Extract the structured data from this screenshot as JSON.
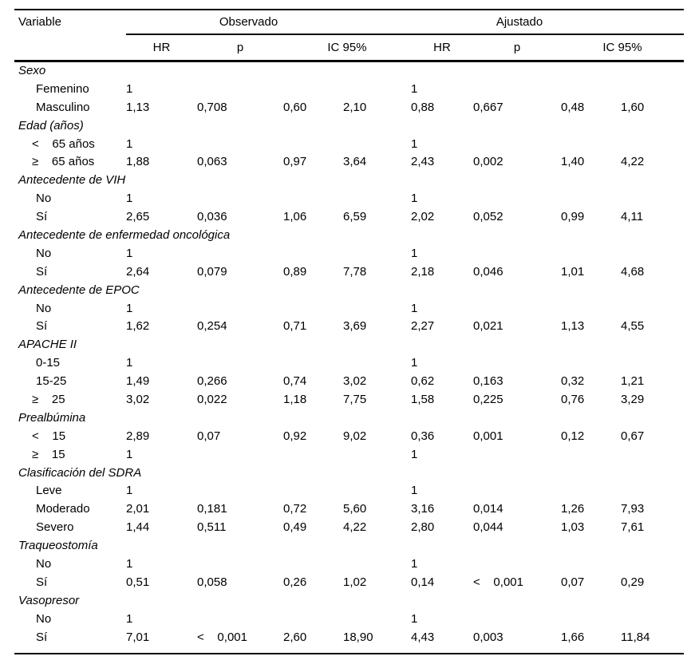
{
  "table": {
    "header": {
      "variable": "Variable",
      "groups": [
        "Observado",
        "Ajustado"
      ],
      "sub": [
        "HR",
        "p",
        "IC 95%",
        "HR",
        "p",
        "IC 95%"
      ]
    },
    "columns": [
      "obs-hr",
      "obs-p",
      "obs-ic-low",
      "obs-ic-high",
      "adj-hr",
      "adj-p",
      "adj-ic-low",
      "adj-ic-high"
    ],
    "rows": [
      {
        "type": "section",
        "label": "Sexo"
      },
      {
        "type": "data",
        "label": "Femenino",
        "cells": [
          "1",
          "",
          "",
          "",
          "1",
          "",
          "",
          ""
        ]
      },
      {
        "type": "data",
        "label": "Masculino",
        "cells": [
          "1,13",
          "0,708",
          "0,60",
          "2,10",
          "0,88",
          "0,667",
          "0,48",
          "1,60"
        ]
      },
      {
        "type": "section",
        "label": "Edad (años)"
      },
      {
        "type": "data",
        "label": "<    65 años",
        "cells": [
          "1",
          "",
          "",
          "",
          "1",
          "",
          "",
          ""
        ]
      },
      {
        "type": "data",
        "label": "≥    65 años",
        "cells": [
          "1,88",
          "0,063",
          "0,97",
          "3,64",
          "2,43",
          "0,002",
          "1,40",
          "4,22"
        ]
      },
      {
        "type": "section",
        "label": "Antecedente de VIH"
      },
      {
        "type": "data",
        "label": "No",
        "cells": [
          "1",
          "",
          "",
          "",
          "1",
          "",
          "",
          ""
        ]
      },
      {
        "type": "data",
        "label": "Sí",
        "cells": [
          "2,65",
          "0,036",
          "1,06",
          "6,59",
          "2,02",
          "0,052",
          "0,99",
          "4,11"
        ]
      },
      {
        "type": "section",
        "label": "Antecedente de enfermedad oncológica"
      },
      {
        "type": "data",
        "label": "No",
        "cells": [
          "1",
          "",
          "",
          "",
          "1",
          "",
          "",
          ""
        ]
      },
      {
        "type": "data",
        "label": "Sí",
        "cells": [
          "2,64",
          "0,079",
          "0,89",
          "7,78",
          "2,18",
          "0,046",
          "1,01",
          "4,68"
        ]
      },
      {
        "type": "section",
        "label": "Antecedente de EPOC"
      },
      {
        "type": "data",
        "label": "No",
        "cells": [
          "1",
          "",
          "",
          "",
          "1",
          "",
          "",
          ""
        ]
      },
      {
        "type": "data",
        "label": "Sí",
        "cells": [
          "1,62",
          "0,254",
          "0,71",
          "3,69",
          "2,27",
          "0,021",
          "1,13",
          "4,55"
        ]
      },
      {
        "type": "section",
        "label": "APACHE II"
      },
      {
        "type": "data",
        "label": "0-15",
        "cells": [
          "1",
          "",
          "",
          "",
          "1",
          "",
          "",
          ""
        ]
      },
      {
        "type": "data",
        "label": "15-25",
        "cells": [
          "1,49",
          "0,266",
          "0,74",
          "3,02",
          "0,62",
          "0,163",
          "0,32",
          "1,21"
        ]
      },
      {
        "type": "data",
        "label": "≥    25",
        "cells": [
          "3,02",
          "0,022",
          "1,18",
          "7,75",
          "1,58",
          "0,225",
          "0,76",
          "3,29"
        ]
      },
      {
        "type": "section",
        "label": "Prealbúmina"
      },
      {
        "type": "data",
        "label": "<    15",
        "cells": [
          "2,89",
          "0,07",
          "0,92",
          "9,02",
          "0,36",
          "0,001",
          "0,12",
          "0,67"
        ]
      },
      {
        "type": "data",
        "label": "≥    15",
        "cells": [
          "1",
          "",
          "",
          "",
          "1",
          "",
          "",
          ""
        ]
      },
      {
        "type": "section",
        "label": "Clasificación del SDRA"
      },
      {
        "type": "data",
        "label": "Leve",
        "cells": [
          "1",
          "",
          "",
          "",
          "1",
          "",
          "",
          ""
        ]
      },
      {
        "type": "data",
        "label": "Moderado",
        "cells": [
          "2,01",
          "0,181",
          "0,72",
          "5,60",
          "3,16",
          "0,014",
          "1,26",
          "7,93"
        ]
      },
      {
        "type": "data",
        "label": "Severo",
        "cells": [
          "1,44",
          "0,511",
          "0,49",
          "4,22",
          "2,80",
          "0,044",
          "1,03",
          "7,61"
        ]
      },
      {
        "type": "section",
        "label": "Traqueostomía"
      },
      {
        "type": "data",
        "label": "No",
        "cells": [
          "1",
          "",
          "",
          "",
          "1",
          "",
          "",
          ""
        ]
      },
      {
        "type": "data",
        "label": "Sí",
        "cells": [
          "0,51",
          "0,058",
          "0,26",
          "1,02",
          "0,14",
          "<    0,001",
          "0,07",
          "0,29"
        ]
      },
      {
        "type": "section",
        "label": "Vasopresor"
      },
      {
        "type": "data",
        "label": "No",
        "cells": [
          "1",
          "",
          "",
          "",
          "1",
          "",
          "",
          ""
        ]
      },
      {
        "type": "data",
        "label": "Sí",
        "cells": [
          "7,01",
          "<    0,001",
          "2,60",
          "18,90",
          "4,43",
          "0,003",
          "1,66",
          "11,84"
        ]
      }
    ]
  }
}
